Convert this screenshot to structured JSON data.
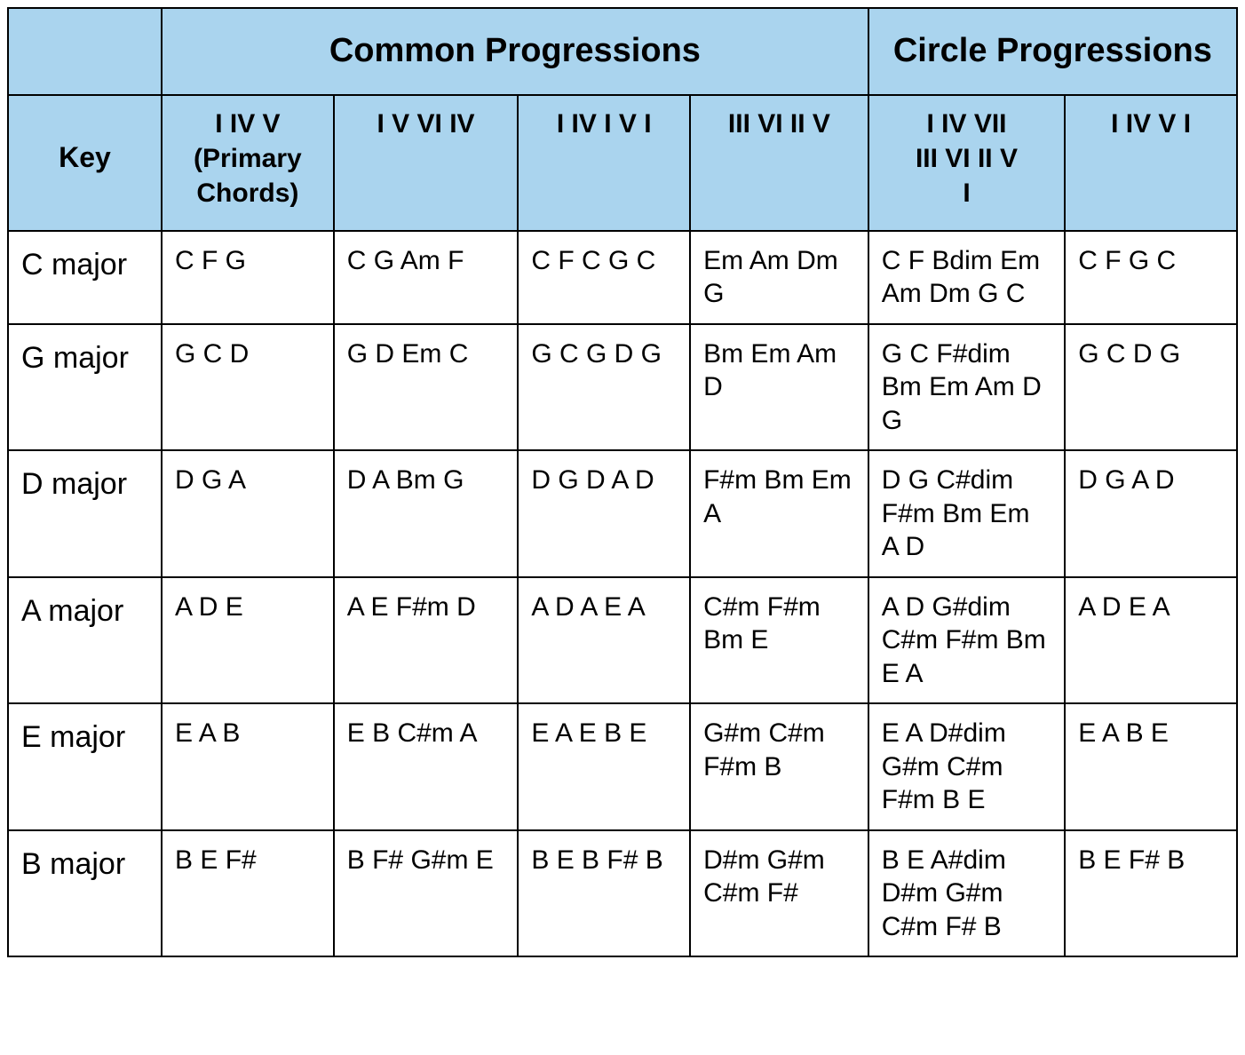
{
  "table": {
    "type": "table",
    "colors": {
      "header_bg": "#aad4ee",
      "border": "#000000",
      "cell_bg": "#ffffff",
      "text": "#000000"
    },
    "column_widths_pct": [
      12.5,
      14,
      15,
      14,
      14.5,
      16,
      14
    ],
    "fontsizes_pt": {
      "group_header": 28,
      "sub_header": 22,
      "key_col": 25,
      "body": 22
    },
    "group_headers": {
      "blank": "",
      "common": "Common Progressions",
      "circle": "Circle Progressions"
    },
    "columns": [
      {
        "label": "Key"
      },
      {
        "label": "I IV V\n(Primary Chords)"
      },
      {
        "label": "I V VI IV"
      },
      {
        "label": "I IV I V I"
      },
      {
        "label": "III VI II V"
      },
      {
        "label": "I IV VII\nIII VI II V\nI"
      },
      {
        "label": "I IV V I"
      }
    ],
    "rows": [
      {
        "key": "C major",
        "cells": [
          "C F G",
          "C G Am F",
          "C F C G C",
          "Em Am Dm G",
          "C F Bdim Em Am Dm G C",
          "C F G C"
        ]
      },
      {
        "key": "G major",
        "cells": [
          "G C D",
          "G D Em C",
          "G C G D G",
          "Bm Em Am D",
          "G C F#dim Bm Em Am D G",
          "G C D G"
        ]
      },
      {
        "key": "D major",
        "cells": [
          "D G A",
          "D A Bm G",
          "D G D A D",
          "F#m Bm Em A",
          "D G C#dim F#m Bm Em A D",
          "D G A D"
        ]
      },
      {
        "key": "A major",
        "cells": [
          "A D E",
          "A E F#m D",
          "A D A E A",
          "C#m F#m Bm E",
          "A D G#dim C#m F#m Bm E A",
          "A D E A"
        ]
      },
      {
        "key": "E major",
        "cells": [
          "E A B",
          "E B C#m A",
          "E A E B E",
          "G#m C#m F#m B",
          "E A D#dim G#m C#m F#m B E",
          "E A B E"
        ]
      },
      {
        "key": "B major",
        "cells": [
          "B E F#",
          "B F# G#m E",
          "B E B F# B",
          "D#m G#m C#m F#",
          "B E A#dim D#m G#m C#m F# B",
          "B E F# B"
        ]
      }
    ]
  }
}
